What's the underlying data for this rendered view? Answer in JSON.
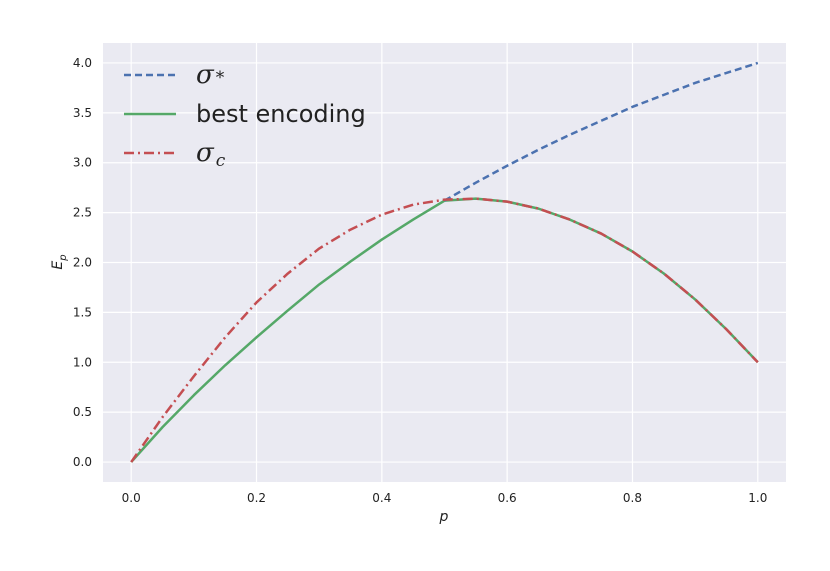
{
  "chart_data": {
    "type": "line",
    "title": "",
    "xlabel": "p",
    "ylabel": "E_p",
    "xlim": [
      -0.045,
      1.045
    ],
    "ylim": [
      -0.2,
      4.2
    ],
    "x_ticks": [
      "0.0",
      "0.2",
      "0.4",
      "0.6",
      "0.8",
      "1.0"
    ],
    "y_ticks": [
      "0.0",
      "0.5",
      "1.0",
      "1.5",
      "2.0",
      "2.5",
      "3.0",
      "3.5",
      "4.0"
    ],
    "grid": true,
    "legend_position": "top-left",
    "series": [
      {
        "name": "σ*",
        "legend_main": "σ",
        "legend_sub": "*",
        "color": "#4C72B0",
        "style": "dashed",
        "x": [
          0.5,
          0.55,
          0.6,
          0.65,
          0.7,
          0.75,
          0.8,
          0.85,
          0.9,
          0.95,
          1.0
        ],
        "y": [
          2.62,
          2.8,
          2.97,
          3.13,
          3.28,
          3.42,
          3.56,
          3.68,
          3.8,
          3.9,
          4.0
        ]
      },
      {
        "name": "best encoding",
        "legend_main": "best encoding",
        "legend_sub": "",
        "color": "#55A868",
        "style": "solid",
        "x": [
          0.0,
          0.05,
          0.1,
          0.15,
          0.2,
          0.25,
          0.3,
          0.35,
          0.4,
          0.45,
          0.5,
          0.55,
          0.6,
          0.65,
          0.7,
          0.75,
          0.8,
          0.85,
          0.9,
          0.95,
          1.0
        ],
        "y": [
          0.0,
          0.35,
          0.67,
          0.97,
          1.25,
          1.52,
          1.78,
          2.01,
          2.23,
          2.43,
          2.62,
          2.64,
          2.61,
          2.54,
          2.43,
          2.29,
          2.11,
          1.89,
          1.63,
          1.33,
          1.0
        ]
      },
      {
        "name": "σc",
        "legend_main": "σ",
        "legend_sub": "c",
        "color": "#C44E52",
        "style": "dashdot",
        "x": [
          0.0,
          0.05,
          0.1,
          0.15,
          0.2,
          0.25,
          0.3,
          0.35,
          0.4,
          0.45,
          0.5,
          0.55,
          0.6,
          0.65,
          0.7,
          0.75,
          0.8,
          0.85,
          0.9,
          0.95,
          1.0
        ],
        "y": [
          0.0,
          0.45,
          0.86,
          1.25,
          1.6,
          1.89,
          2.14,
          2.33,
          2.48,
          2.58,
          2.63,
          2.64,
          2.61,
          2.54,
          2.43,
          2.29,
          2.11,
          1.89,
          1.63,
          1.33,
          1.0
        ]
      }
    ]
  }
}
